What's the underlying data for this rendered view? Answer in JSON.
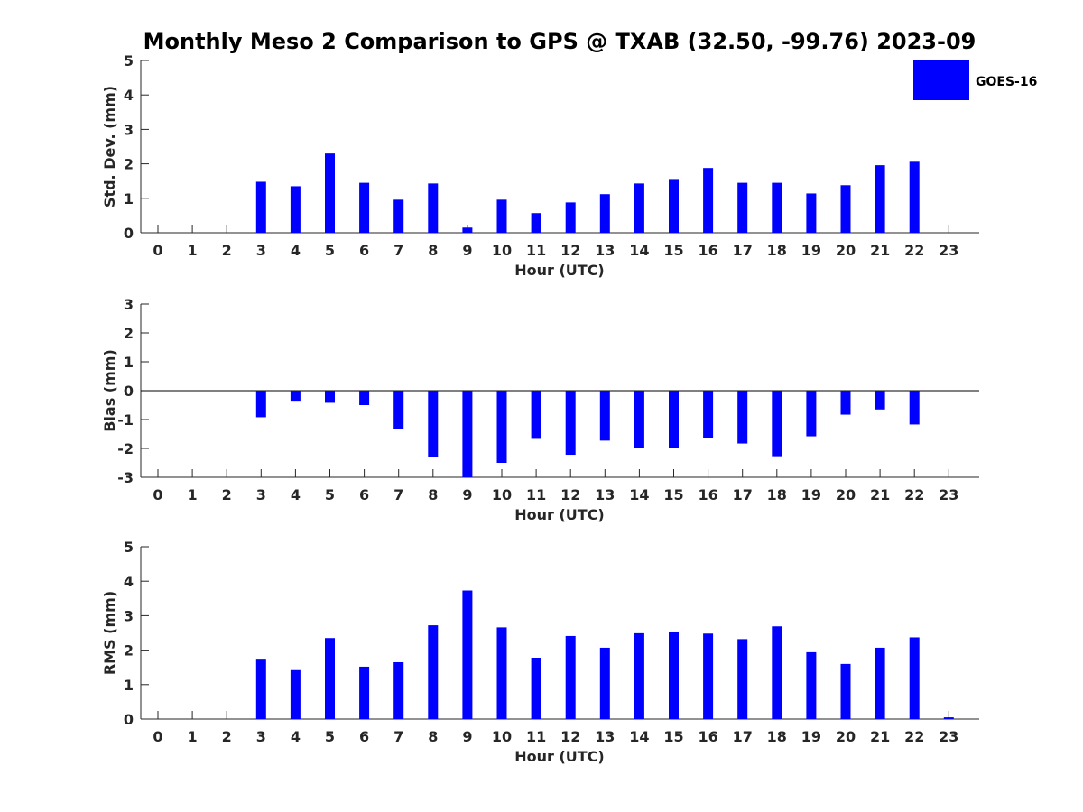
{
  "title": "Monthly Meso 2 Comparison to GPS @ TXAB (32.50, -99.76) 2023-09",
  "bar_color": "#0000ff",
  "legend": {
    "label": "GOES-16",
    "placement": "top-right"
  },
  "chart_data": [
    {
      "type": "bar",
      "ylabel": "Std. Dev. (mm)",
      "xlabel": "Hour (UTC)",
      "ylim": [
        0,
        5
      ],
      "yticks": [
        0,
        1,
        2,
        3,
        4,
        5
      ],
      "categories": [
        0,
        1,
        2,
        3,
        4,
        5,
        6,
        7,
        8,
        9,
        10,
        11,
        12,
        13,
        14,
        15,
        16,
        17,
        18,
        19,
        20,
        21,
        22,
        23
      ],
      "series": [
        {
          "name": "GOES-16",
          "values": [
            null,
            null,
            null,
            1.48,
            1.35,
            2.3,
            1.45,
            0.96,
            1.43,
            0.15,
            0.96,
            0.57,
            0.88,
            1.12,
            1.43,
            1.56,
            1.88,
            1.45,
            1.45,
            1.14,
            1.38,
            1.96,
            2.06,
            null
          ]
        }
      ]
    },
    {
      "type": "bar",
      "ylabel": "Bias (mm)",
      "xlabel": "Hour (UTC)",
      "ylim": [
        -3,
        3
      ],
      "yticks": [
        -3,
        -2,
        -1,
        0,
        1,
        2,
        3
      ],
      "zero_line": true,
      "categories": [
        0,
        1,
        2,
        3,
        4,
        5,
        6,
        7,
        8,
        9,
        10,
        11,
        12,
        13,
        14,
        15,
        16,
        17,
        18,
        19,
        20,
        21,
        22,
        23
      ],
      "series": [
        {
          "name": "GOES-16",
          "values": [
            null,
            null,
            null,
            -0.92,
            -0.38,
            -0.42,
            -0.5,
            -1.33,
            -2.3,
            -3.0,
            -2.5,
            -1.67,
            -2.22,
            -1.73,
            -2.0,
            -2.0,
            -1.63,
            -1.83,
            -2.27,
            -1.58,
            -0.83,
            -0.65,
            -1.17,
            null
          ]
        }
      ]
    },
    {
      "type": "bar",
      "ylabel": "RMS (mm)",
      "xlabel": "Hour (UTC)",
      "ylim": [
        0,
        5
      ],
      "yticks": [
        0,
        1,
        2,
        3,
        4,
        5
      ],
      "categories": [
        0,
        1,
        2,
        3,
        4,
        5,
        6,
        7,
        8,
        9,
        10,
        11,
        12,
        13,
        14,
        15,
        16,
        17,
        18,
        19,
        20,
        21,
        22,
        23
      ],
      "series": [
        {
          "name": "GOES-16",
          "values": [
            null,
            null,
            null,
            1.75,
            1.42,
            2.35,
            1.52,
            1.65,
            2.72,
            3.73,
            2.66,
            1.78,
            2.41,
            2.07,
            2.49,
            2.54,
            2.48,
            2.32,
            2.69,
            1.94,
            1.6,
            2.07,
            2.37,
            0.05
          ]
        }
      ]
    }
  ]
}
